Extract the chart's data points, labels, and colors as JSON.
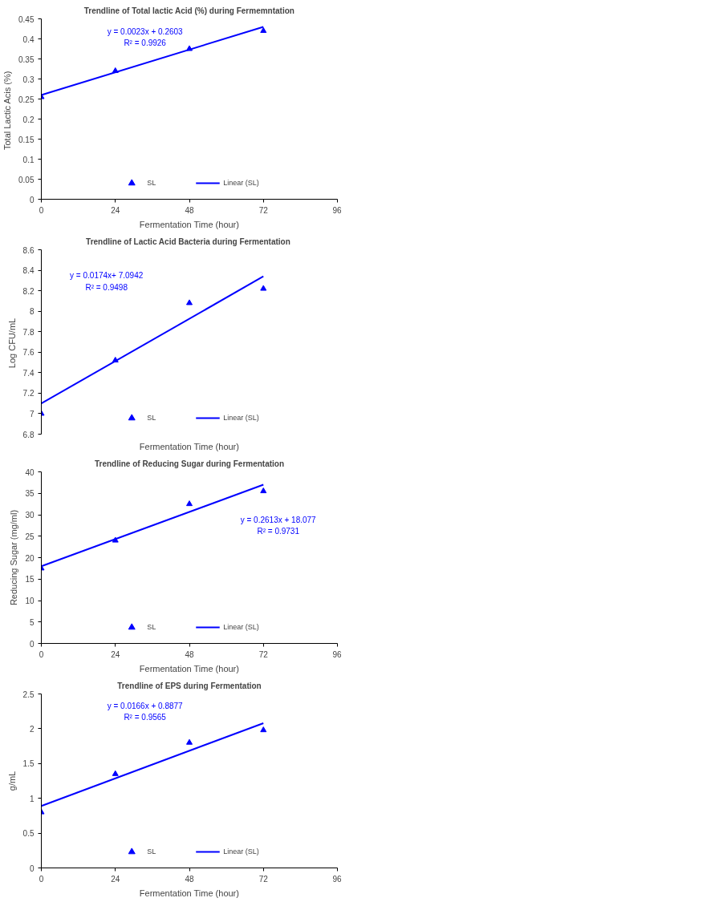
{
  "chart_data": [
    {
      "type": "scatter",
      "title": "Trendline of Total lactic Acid (%) during Fermemntation",
      "xlabel": "Fermentation Time (hour)",
      "ylabel": "Total Lactic Acis  (%)",
      "xlim": [
        0,
        96
      ],
      "xticks": [
        0,
        24,
        48,
        72,
        96
      ],
      "ylim": [
        0,
        0.45
      ],
      "yticks": [
        0,
        0.05,
        0.1,
        0.15,
        0.2,
        0.25,
        0.3,
        0.35,
        0.4,
        0.45
      ],
      "legend": "bottom",
      "series": [
        {
          "name": "SL",
          "marker": "triangle",
          "color": "#0000ff",
          "x": [
            0,
            24,
            48,
            72
          ],
          "values": [
            0.255,
            0.32,
            0.375,
            0.42
          ]
        },
        {
          "name": "Linear (SL)",
          "type": "line",
          "marker": "none",
          "color": "#0000ff",
          "x": [
            0,
            72
          ],
          "values": [
            0.26,
            0.43
          ]
        }
      ],
      "annotations": [
        "y = 0.0023x + 0.2603",
        "R² = 0.9926"
      ]
    },
    {
      "type": "scatter",
      "title": "Trendline of Lactic Acid  Bacteria during Fermentation",
      "xlabel": "Fermentation Time (hour)",
      "ylabel": "Log  CFU/mL",
      "xlim": [
        0,
        96
      ],
      "ylim": [
        6.8,
        8.6
      ],
      "yticks": [
        6.8,
        7,
        7.2,
        7.4,
        7.6,
        7.8,
        8,
        8.2,
        8.4,
        8.6
      ],
      "legend": "bottom",
      "tick_labels": "y",
      "series": [
        {
          "name": "SL",
          "marker": "triangle",
          "color": "#0000ff",
          "x": [
            0,
            24,
            48,
            72
          ],
          "values": [
            7.0,
            7.52,
            8.08,
            8.22
          ]
        },
        {
          "name": "Linear (SL)",
          "type": "line",
          "marker": "none",
          "color": "#0000ff",
          "x": [
            0,
            72
          ],
          "values": [
            7.1,
            8.34
          ]
        }
      ],
      "annotations": [
        "y = 0.0174x+ 7.0942",
        "R² = 0.9498"
      ]
    },
    {
      "type": "scatter",
      "title": "Trendline of Reducing Sugar during Fermentation",
      "xlabel": "Fermentation Time (hour)",
      "ylabel": "Reducing Sugar (mg/ml)",
      "xlim": [
        0,
        96
      ],
      "xticks": [
        0,
        24,
        48,
        72,
        96
      ],
      "ylim": [
        0,
        40
      ],
      "yticks": [
        0,
        5,
        10,
        15,
        20,
        25,
        30,
        35,
        40
      ],
      "legend": "bottom",
      "series": [
        {
          "name": "SL",
          "marker": "triangle",
          "color": "#0000ff",
          "x": [
            0,
            24,
            48,
            72
          ],
          "values": [
            17.5,
            24,
            32.5,
            35.5
          ]
        },
        {
          "name": "Linear (SL)",
          "type": "line",
          "marker": "none",
          "color": "#0000ff",
          "x": [
            0,
            72
          ],
          "values": [
            18,
            37
          ]
        }
      ],
      "annotations": [
        "y = 0.2613x + 18.077",
        "R² = 0.9731"
      ]
    },
    {
      "type": "scatter",
      "title": "Trendline of EPS during Fermentation",
      "xlabel": "Fermentation Time (hour)",
      "ylabel": "g/mL",
      "xlim": [
        0,
        96
      ],
      "xticks": [
        0,
        24,
        48,
        72,
        96
      ],
      "ylim": [
        0,
        2.5
      ],
      "yticks": [
        0,
        0.5,
        1,
        1.5,
        2,
        2.5
      ],
      "legend": "bottom",
      "series": [
        {
          "name": "SL",
          "marker": "triangle",
          "color": "#0000ff",
          "x": [
            0,
            24,
            48,
            72
          ],
          "values": [
            0.8,
            1.35,
            1.8,
            1.98
          ]
        },
        {
          "name": "Linear (SL)",
          "type": "line",
          "marker": "none",
          "color": "#0000ff",
          "x": [
            0,
            72
          ],
          "values": [
            0.89,
            2.08
          ]
        }
      ],
      "annotations": [
        "y = 0.0166x + 0.8877",
        "R² = 0.9565"
      ]
    }
  ]
}
